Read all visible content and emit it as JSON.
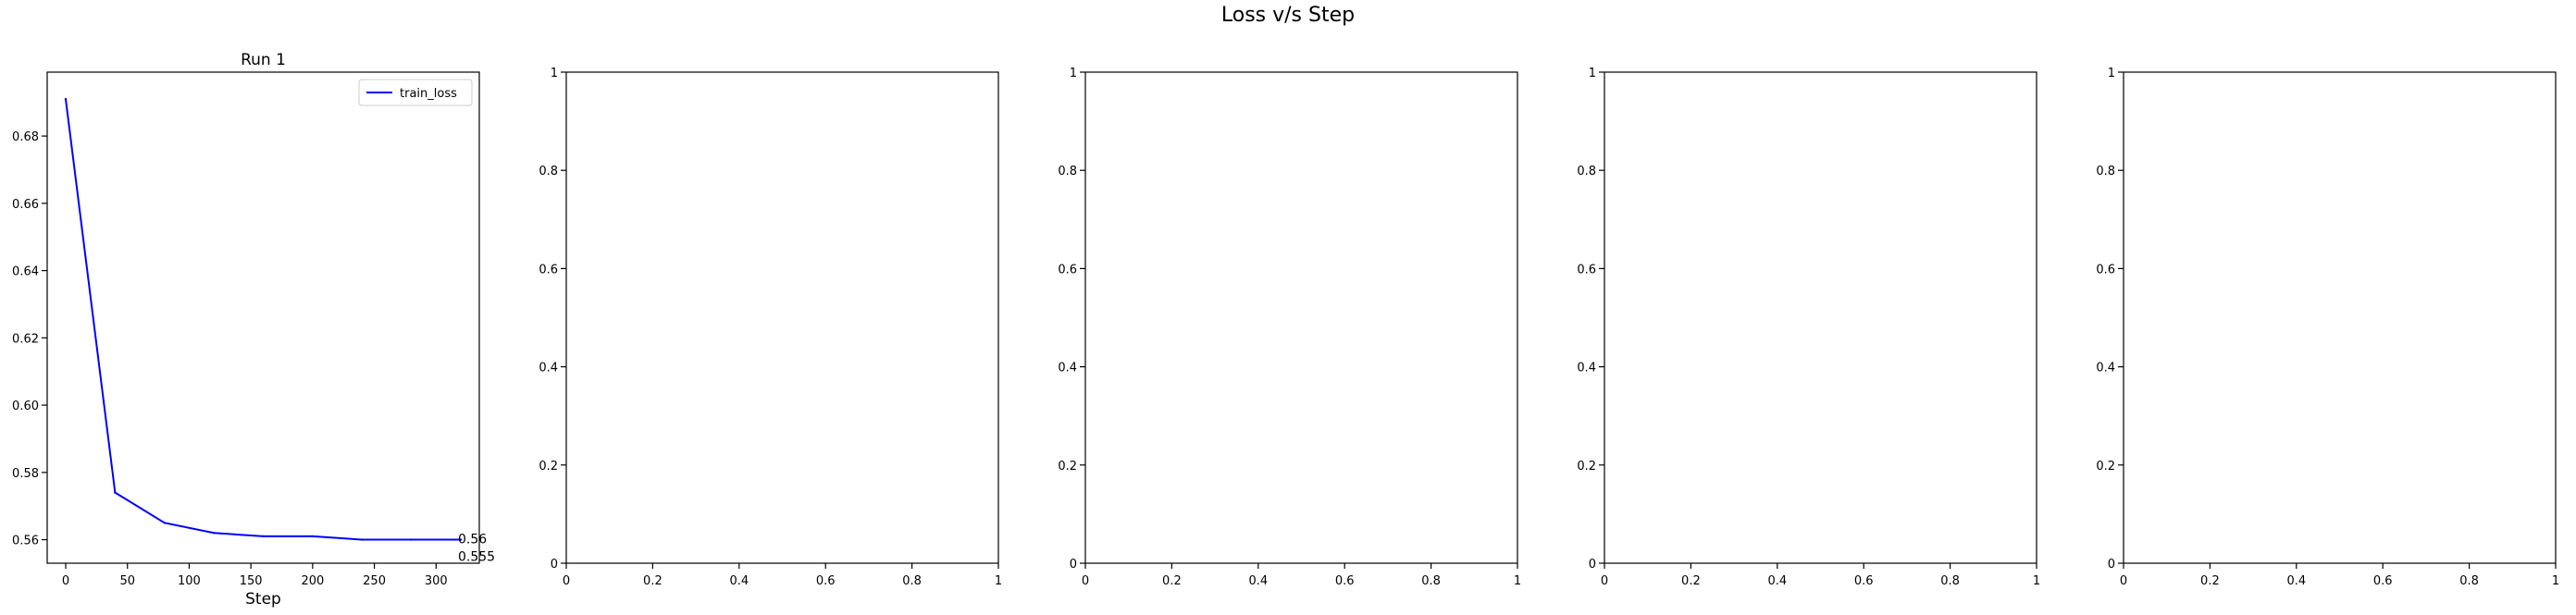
{
  "figure": {
    "title": "Loss v/s Step"
  },
  "chart_data": [
    {
      "type": "line",
      "title": "Run 1",
      "xlabel": "Step",
      "ylabel": "",
      "xlim": [
        -15,
        335
      ],
      "ylim": [
        0.553,
        0.699
      ],
      "xticks": [
        0,
        50,
        100,
        150,
        200,
        250,
        300
      ],
      "yticks": [
        0.56,
        0.58,
        0.6,
        0.62,
        0.64,
        0.66,
        0.68
      ],
      "ytick_labels": [
        "0.56",
        "0.58",
        "0.60",
        "0.62",
        "0.64",
        "0.66",
        "0.68"
      ],
      "series": [
        {
          "name": "train_loss",
          "color": "#0000ff",
          "x": [
            0,
            40,
            80,
            120,
            160,
            200,
            240,
            280,
            320
          ],
          "values": [
            0.691,
            0.574,
            0.565,
            0.562,
            0.561,
            0.561,
            0.56,
            0.56,
            0.56
          ]
        }
      ],
      "annotations": [
        "0.56",
        "0.555"
      ],
      "legend": "upper-right",
      "grid": false
    },
    {
      "type": "line",
      "title": "",
      "xlabel": "",
      "ylabel": "",
      "xlim": [
        0,
        1
      ],
      "ylim": [
        0,
        1
      ],
      "xticks": [
        0.0,
        0.2,
        0.4,
        0.6,
        0.8,
        1.0
      ],
      "yticks": [
        0.0,
        0.2,
        0.4,
        0.6,
        0.8,
        1.0
      ],
      "series": [],
      "grid": false
    },
    {
      "type": "line",
      "title": "",
      "xlabel": "",
      "ylabel": "",
      "xlim": [
        0,
        1
      ],
      "ylim": [
        0,
        1
      ],
      "xticks": [
        0.0,
        0.2,
        0.4,
        0.6,
        0.8,
        1.0
      ],
      "yticks": [
        0.0,
        0.2,
        0.4,
        0.6,
        0.8,
        1.0
      ],
      "series": [],
      "grid": false
    },
    {
      "type": "line",
      "title": "",
      "xlabel": "",
      "ylabel": "",
      "xlim": [
        0,
        1
      ],
      "ylim": [
        0,
        1
      ],
      "xticks": [
        0.0,
        0.2,
        0.4,
        0.6,
        0.8,
        1.0
      ],
      "yticks": [
        0.0,
        0.2,
        0.4,
        0.6,
        0.8,
        1.0
      ],
      "series": [],
      "grid": false
    },
    {
      "type": "line",
      "title": "",
      "xlabel": "",
      "ylabel": "",
      "xlim": [
        0,
        1
      ],
      "ylim": [
        0,
        1
      ],
      "xticks": [
        0.0,
        0.2,
        0.4,
        0.6,
        0.8,
        1.0
      ],
      "yticks": [
        0.0,
        0.2,
        0.4,
        0.6,
        0.8,
        1.0
      ],
      "series": [],
      "grid": false
    }
  ]
}
